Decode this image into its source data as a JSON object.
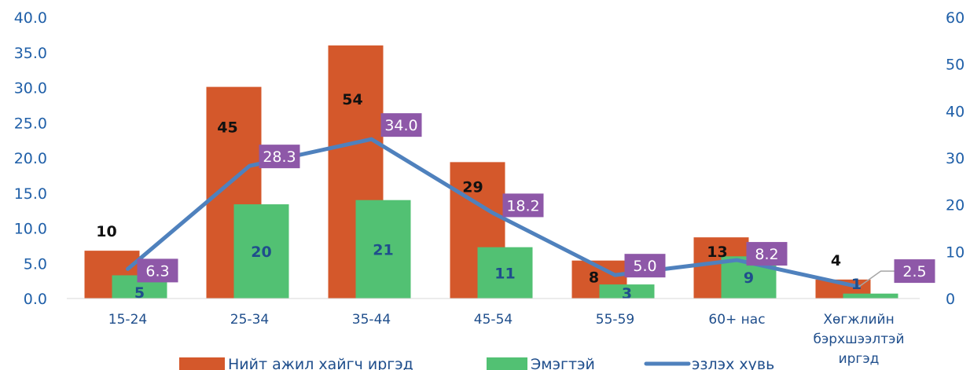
{
  "chart_data": {
    "type": "bar",
    "categories": [
      "15-24",
      "25-34",
      "35-44",
      "45-54",
      "55-59",
      "60+ нас",
      "Хөгжлийн бэрхшээлтэй иргэд"
    ],
    "series": [
      {
        "name": "Нийт ажил хайгч иргэд",
        "type": "bar",
        "axis": "left",
        "values": [
          6.8,
          30.1,
          36.0,
          19.4,
          5.4,
          8.7,
          2.7
        ],
        "data_labels": [
          "10",
          "45",
          "54",
          "29",
          "8",
          "13",
          "4"
        ],
        "color": "#d4582b"
      },
      {
        "name": "Эмэгтэй",
        "type": "bar",
        "axis": "left",
        "values": [
          3.3,
          13.4,
          14.0,
          7.3,
          2.0,
          6.0,
          0.7
        ],
        "data_labels": [
          "5",
          "20",
          "21",
          "11",
          "3",
          "9",
          "1"
        ],
        "color": "#52c173"
      },
      {
        "name": "эзлэх хувь",
        "type": "line",
        "axis": "right",
        "values": [
          6.3,
          28.3,
          34.0,
          18.2,
          5.0,
          8.2,
          2.5
        ],
        "data_labels": [
          "6.3",
          "28.3",
          "34.0",
          "18.2",
          "5.0",
          "8.2",
          "2.5"
        ],
        "color": "#4f81bd"
      }
    ],
    "y_left": {
      "ticks": [
        "0.0",
        "5.0",
        "10.0",
        "15.0",
        "20.0",
        "25.0",
        "30.0",
        "35.0",
        "40.0"
      ],
      "ylim": [
        0,
        40
      ]
    },
    "y_right": {
      "ticks": [
        "0",
        "10",
        "20",
        "30",
        "40",
        "50",
        "60"
      ],
      "ylim": [
        0,
        60
      ]
    },
    "label_box_color": "#8e58a8",
    "legend_position": "bottom",
    "grid": false
  }
}
